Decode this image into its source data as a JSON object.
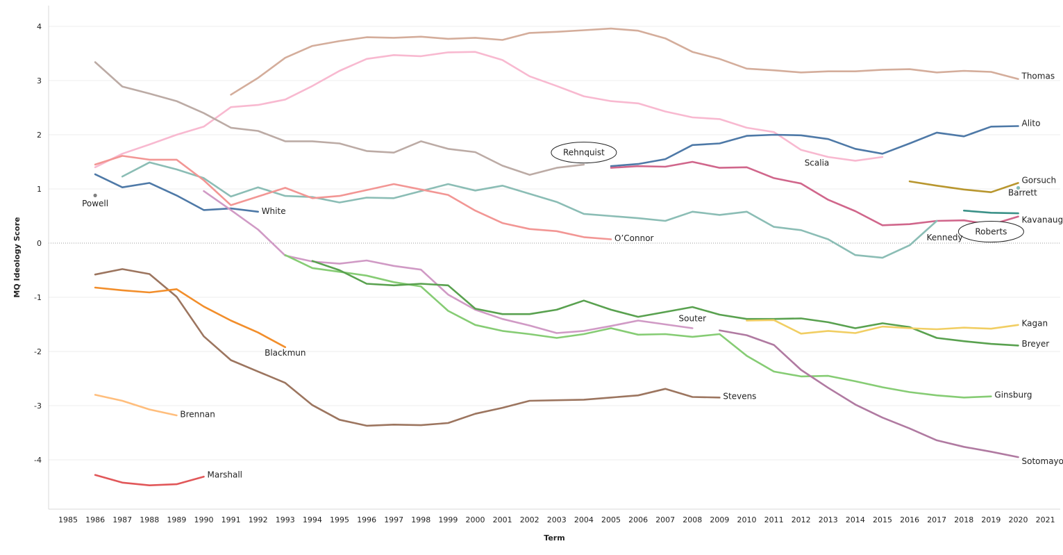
{
  "chart_data": {
    "type": "line",
    "title": "",
    "xlabel": "Term",
    "ylabel": "MQ Ideology Score",
    "xlim": [
      1985,
      2021
    ],
    "ylim": [
      -4.75,
      4.4
    ],
    "x_ticks": [
      1985,
      1986,
      1987,
      1988,
      1989,
      1990,
      1991,
      1992,
      1993,
      1994,
      1995,
      1996,
      1997,
      1998,
      1999,
      2000,
      2001,
      2002,
      2003,
      2004,
      2005,
      2006,
      2007,
      2008,
      2009,
      2010,
      2011,
      2012,
      2013,
      2014,
      2015,
      2016,
      2017,
      2018,
      2019,
      2020,
      2021
    ],
    "y_ticks": [
      4,
      3,
      2,
      1,
      0,
      -1,
      -2,
      -3,
      -4
    ],
    "y_tick_labels": [
      "4",
      "3",
      "2",
      "1",
      "0",
      "-1",
      "-2",
      "-3",
      "-4"
    ],
    "gridlines": true,
    "legend": "none (direct labels)",
    "series": [
      {
        "name": "Thomas",
        "color": "#d4ad9b",
        "start": 1991,
        "values": [
          2.74,
          3.05,
          3.42,
          3.64,
          3.73,
          3.8,
          3.79,
          3.81,
          3.77,
          3.79,
          3.75,
          3.88,
          3.9,
          3.93,
          3.96,
          3.92,
          3.78,
          3.53,
          3.4,
          3.22,
          3.19,
          3.15,
          3.17,
          3.17,
          3.2,
          3.21,
          3.15,
          3.18,
          3.16,
          3.03
        ]
      },
      {
        "name": "Scalia",
        "color": "#f8b9d0",
        "start": 1986,
        "values": [
          1.4,
          1.65,
          1.82,
          2.0,
          2.15,
          2.51,
          2.55,
          2.65,
          2.9,
          3.18,
          3.4,
          3.47,
          3.45,
          3.52,
          3.53,
          3.38,
          3.08,
          2.9,
          2.71,
          2.62,
          2.58,
          2.43,
          2.32,
          2.29,
          2.13,
          2.05,
          1.72,
          1.59,
          1.52,
          1.59
        ]
      },
      {
        "name": "Rehnquist",
        "color": "#bcaba5",
        "start": 1986,
        "values": [
          3.34,
          2.89,
          2.76,
          2.62,
          2.4,
          2.13,
          2.07,
          1.88,
          1.88,
          1.84,
          1.7,
          1.67,
          1.88,
          1.74,
          1.68,
          1.43,
          1.26,
          1.39,
          1.45
        ]
      },
      {
        "name": "Alito",
        "color": "#4e79a7",
        "start": 2005,
        "values": [
          1.42,
          1.46,
          1.55,
          1.81,
          1.84,
          1.98,
          2.0,
          1.99,
          1.92,
          1.74,
          1.65,
          1.84,
          2.04,
          1.97,
          2.15,
          2.16
        ]
      },
      {
        "name": "Roberts",
        "color": "#d0668b",
        "start": 2005,
        "values": [
          1.39,
          1.42,
          1.41,
          1.5,
          1.39,
          1.4,
          1.2,
          1.1,
          0.8,
          0.59,
          0.33,
          0.35,
          0.41,
          0.42,
          0.34,
          0.49
        ]
      },
      {
        "name": "Gorsuch",
        "color": "#b8962e",
        "start": 2016,
        "values": [
          1.14,
          1.06,
          0.99,
          0.94,
          1.11
        ]
      },
      {
        "name": "Barrett",
        "color": "#86bcb6",
        "start": 2020,
        "values": [
          1.02
        ]
      },
      {
        "name": "Kavanaugh",
        "color": "#3b9188",
        "start": 2018,
        "values": [
          0.6,
          0.56,
          0.55
        ]
      },
      {
        "name": "Kennedy",
        "color": "#8bbdb5",
        "start": 1987,
        "values": [
          1.23,
          1.49,
          1.36,
          1.2,
          0.86,
          1.03,
          0.87,
          0.85,
          0.75,
          0.84,
          0.83,
          0.96,
          1.09,
          0.97,
          1.06,
          0.91,
          0.76,
          0.54,
          0.5,
          0.46,
          0.41,
          0.58,
          0.52,
          0.58,
          0.3,
          0.24,
          0.07,
          -0.22,
          -0.27,
          -0.04,
          0.41
        ]
      },
      {
        "name": "O'Connor",
        "color": "#f29694",
        "start": 1986,
        "values": [
          1.45,
          1.61,
          1.54,
          1.54,
          1.16,
          0.7,
          0.86,
          1.02,
          0.83,
          0.87,
          0.98,
          1.09,
          0.99,
          0.89,
          0.6,
          0.37,
          0.26,
          0.22,
          0.11,
          0.07
        ]
      },
      {
        "name": "White",
        "color": "#4e79a7",
        "start": 1986,
        "values": [
          1.27,
          1.03,
          1.11,
          0.88,
          0.61,
          0.64,
          0.58
        ]
      },
      {
        "name": "Powell",
        "color": "#7f7f7f",
        "start": 1986,
        "values": [
          0.88
        ]
      },
      {
        "name": "Souter",
        "color": "#d09ac5",
        "start": 1990,
        "values": [
          0.96,
          0.61,
          0.25,
          -0.23,
          -0.34,
          -0.38,
          -0.32,
          -0.42,
          -0.49,
          -0.95,
          -1.23,
          -1.4,
          -1.52,
          -1.66,
          -1.62,
          -1.53,
          -1.43,
          -1.5,
          -1.57
        ]
      },
      {
        "name": "Ginsburg",
        "color": "#86cc74",
        "start": 1993,
        "values": [
          -0.22,
          -0.46,
          -0.53,
          -0.6,
          -0.72,
          -0.8,
          -1.25,
          -1.51,
          -1.62,
          -1.68,
          -1.75,
          -1.68,
          -1.57,
          -1.69,
          -1.68,
          -1.73,
          -1.68,
          -2.08,
          -2.37,
          -2.46,
          -2.45,
          -2.55,
          -2.66,
          -2.75,
          -2.81,
          -2.85,
          -2.83
        ]
      },
      {
        "name": "Breyer",
        "color": "#59a14f",
        "start": 1994,
        "values": [
          -0.33,
          -0.5,
          -0.75,
          -0.78,
          -0.75,
          -0.78,
          -1.21,
          -1.31,
          -1.31,
          -1.23,
          -1.06,
          -1.23,
          -1.36,
          -1.27,
          -1.18,
          -1.32,
          -1.4,
          -1.4,
          -1.39,
          -1.46,
          -1.57,
          -1.48,
          -1.55,
          -1.75,
          -1.81,
          -1.86,
          -1.89
        ]
      },
      {
        "name": "Kagan",
        "color": "#f1ce63",
        "start": 2010,
        "values": [
          -1.43,
          -1.42,
          -1.67,
          -1.62,
          -1.66,
          -1.54,
          -1.57,
          -1.59,
          -1.56,
          -1.58,
          -1.51
        ]
      },
      {
        "name": "Sotomayor",
        "color": "#b07aa1",
        "start": 2009,
        "values": [
          -1.61,
          -1.7,
          -1.88,
          -2.34,
          -2.67,
          -2.98,
          -3.22,
          -3.42,
          -3.64,
          -3.76,
          -3.85,
          -3.95
        ]
      },
      {
        "name": "Stevens",
        "color": "#9c755f",
        "start": 1986,
        "values": [
          -0.58,
          -0.48,
          -0.57,
          -0.99,
          -1.72,
          -2.16,
          -2.37,
          -2.58,
          -2.99,
          -3.26,
          -3.37,
          -3.35,
          -3.36,
          -3.32,
          -3.15,
          -3.04,
          -2.91,
          -2.9,
          -2.89,
          -2.85,
          -2.81,
          -2.69,
          -2.84,
          -2.85
        ]
      },
      {
        "name": "Blackmun",
        "color": "#f28e2b",
        "start": 1986,
        "values": [
          -0.82,
          -0.87,
          -0.91,
          -0.85,
          -1.17,
          -1.43,
          -1.65,
          -1.92
        ]
      },
      {
        "name": "Brennan",
        "color": "#ffbe7d",
        "start": 1986,
        "values": [
          -2.8,
          -2.91,
          -3.07,
          -3.18
        ]
      },
      {
        "name": "Marshall",
        "color": "#e15759",
        "start": 1986,
        "values": [
          -4.28,
          -4.42,
          -4.47,
          -4.45,
          -4.31
        ]
      }
    ],
    "annotations": [
      {
        "series": "Thomas",
        "text": "Thomas",
        "at": [
          2020,
          3.03
        ],
        "anchor": "right",
        "circled": false
      },
      {
        "series": "Alito",
        "text": "Alito",
        "at": [
          2020,
          2.16
        ],
        "anchor": "right",
        "circled": false
      },
      {
        "series": "Scalia",
        "text": "Scalia",
        "at": [
          2012,
          1.43
        ],
        "anchor": "right",
        "circled": false
      },
      {
        "series": "Rehnquist",
        "text": "Rehnquist",
        "at": [
          2004,
          1.62
        ],
        "anchor": "center",
        "circled": true
      },
      {
        "series": "Gorsuch",
        "text": "Gorsuch",
        "at": [
          2020,
          1.11
        ],
        "anchor": "right",
        "circled": false
      },
      {
        "series": "Barrett",
        "text": "Barrett",
        "at": [
          2019.5,
          0.88
        ],
        "anchor": "right",
        "circled": false
      },
      {
        "series": "Kavanaugh",
        "text": "Kavanaugh",
        "at": [
          2020,
          0.38
        ],
        "anchor": "right",
        "circled": false
      },
      {
        "series": "Roberts",
        "text": "Roberts",
        "at": [
          2019,
          0.16
        ],
        "anchor": "center",
        "circled": true
      },
      {
        "series": "Kennedy",
        "text": "Kennedy",
        "at": [
          2016.5,
          0.05
        ],
        "anchor": "right",
        "circled": false
      },
      {
        "series": "White",
        "text": "White",
        "at": [
          1992,
          0.54
        ],
        "anchor": "right",
        "circled": false
      },
      {
        "series": "Powell",
        "text": "Powell",
        "at": [
          1986,
          0.68
        ],
        "anchor": "center",
        "circled": false
      },
      {
        "series": "O'Connor",
        "text": "O’Connor",
        "at": [
          2005,
          0.04
        ],
        "anchor": "right",
        "circled": false
      },
      {
        "series": "Souter",
        "text": "Souter",
        "at": [
          2008,
          -1.44
        ],
        "anchor": "center",
        "circled": false
      },
      {
        "series": "Kagan",
        "text": "Kagan",
        "at": [
          2020,
          -1.53
        ],
        "anchor": "right",
        "circled": false
      },
      {
        "series": "Breyer",
        "text": "Breyer",
        "at": [
          2020,
          -1.91
        ],
        "anchor": "right",
        "circled": false
      },
      {
        "series": "Ginsburg",
        "text": "Ginsburg",
        "at": [
          2019,
          -2.85
        ],
        "anchor": "right",
        "circled": false
      },
      {
        "series": "Sotomayor",
        "text": "Sotomayor",
        "at": [
          2020,
          -4.08
        ],
        "anchor": "right",
        "circled": false
      },
      {
        "series": "Stevens",
        "text": "Stevens",
        "at": [
          2009,
          -2.88
        ],
        "anchor": "right",
        "circled": false
      },
      {
        "series": "Blackmun",
        "text": "Blackmun",
        "at": [
          1993,
          -2.08
        ],
        "anchor": "center",
        "circled": false
      },
      {
        "series": "Brennan",
        "text": "Brennan",
        "at": [
          1989,
          -3.21
        ],
        "anchor": "right",
        "circled": false
      },
      {
        "series": "Marshall",
        "text": "Marshall",
        "at": [
          1990,
          -4.33
        ],
        "anchor": "right",
        "circled": false
      }
    ]
  }
}
